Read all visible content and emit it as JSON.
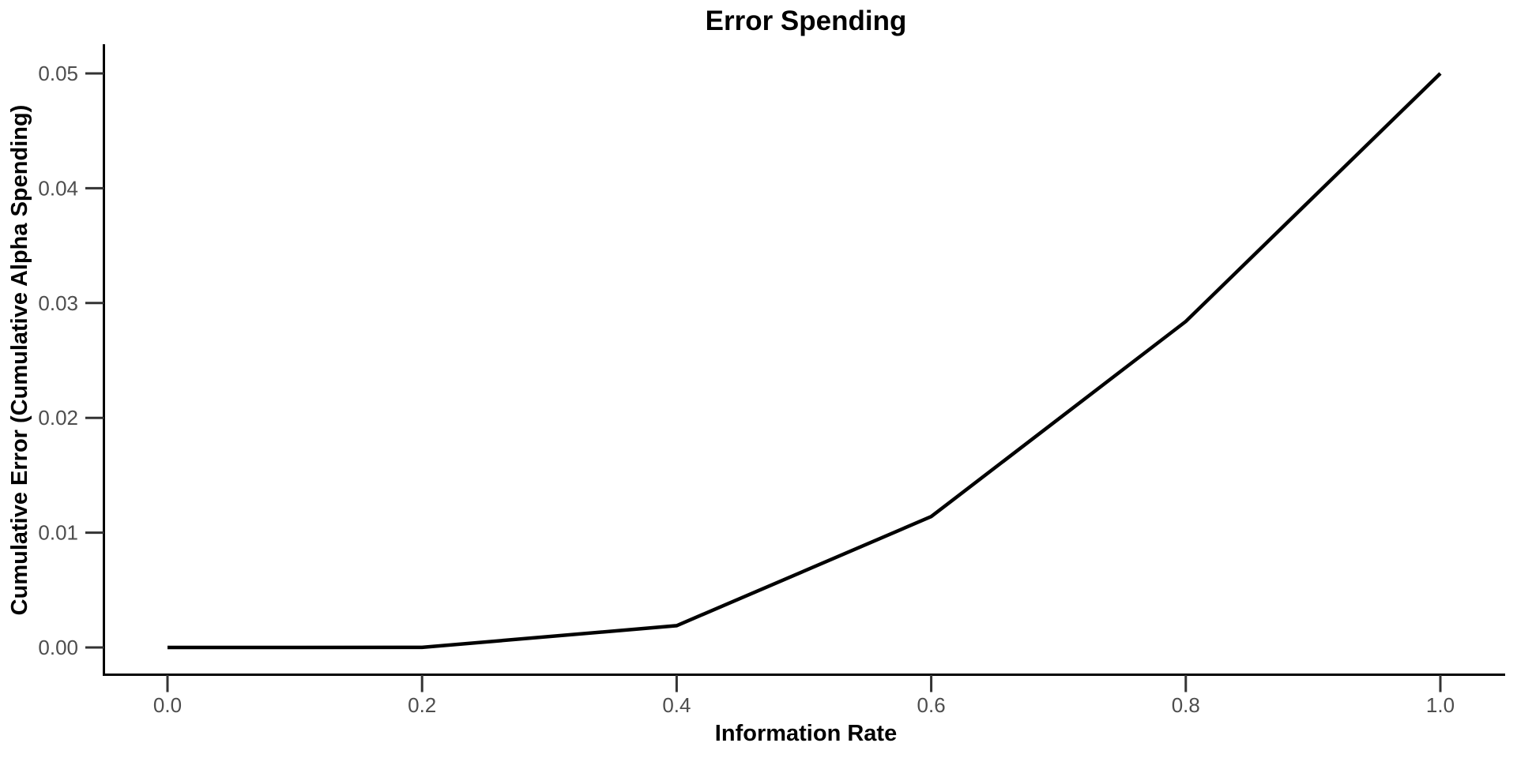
{
  "chart_data": {
    "type": "line",
    "title": "Error Spending",
    "xlabel": "Information Rate",
    "ylabel": "Cumulative Error (Cumulative Alpha Spending)",
    "series": [
      {
        "name": "Cumulative Alpha Spending",
        "x": [
          0.0,
          0.2,
          0.4,
          0.6,
          0.8,
          1.0
        ],
        "y": [
          0.0,
          1e-05,
          0.0019,
          0.0114,
          0.0284,
          0.05
        ]
      }
    ],
    "xlim": [
      0.0,
      1.0
    ],
    "ylim": [
      0.0,
      0.05
    ],
    "x_tick_values": [
      0.0,
      0.2,
      0.4,
      0.6,
      0.8,
      1.0
    ],
    "x_tick_labels": [
      "0.0",
      "0.2",
      "0.4",
      "0.6",
      "0.8",
      "1.0"
    ],
    "y_tick_values": [
      0.0,
      0.01,
      0.02,
      0.03,
      0.04,
      0.05
    ],
    "y_tick_labels": [
      "0.00",
      "0.01",
      "0.02",
      "0.03",
      "0.04",
      "0.05"
    ],
    "grid": false,
    "legend": "none",
    "line_color": "#000000",
    "axis_color": "#000000",
    "tick_label_color": "#4d4d4d",
    "title_color": "#000000",
    "background": "#ffffff"
  }
}
